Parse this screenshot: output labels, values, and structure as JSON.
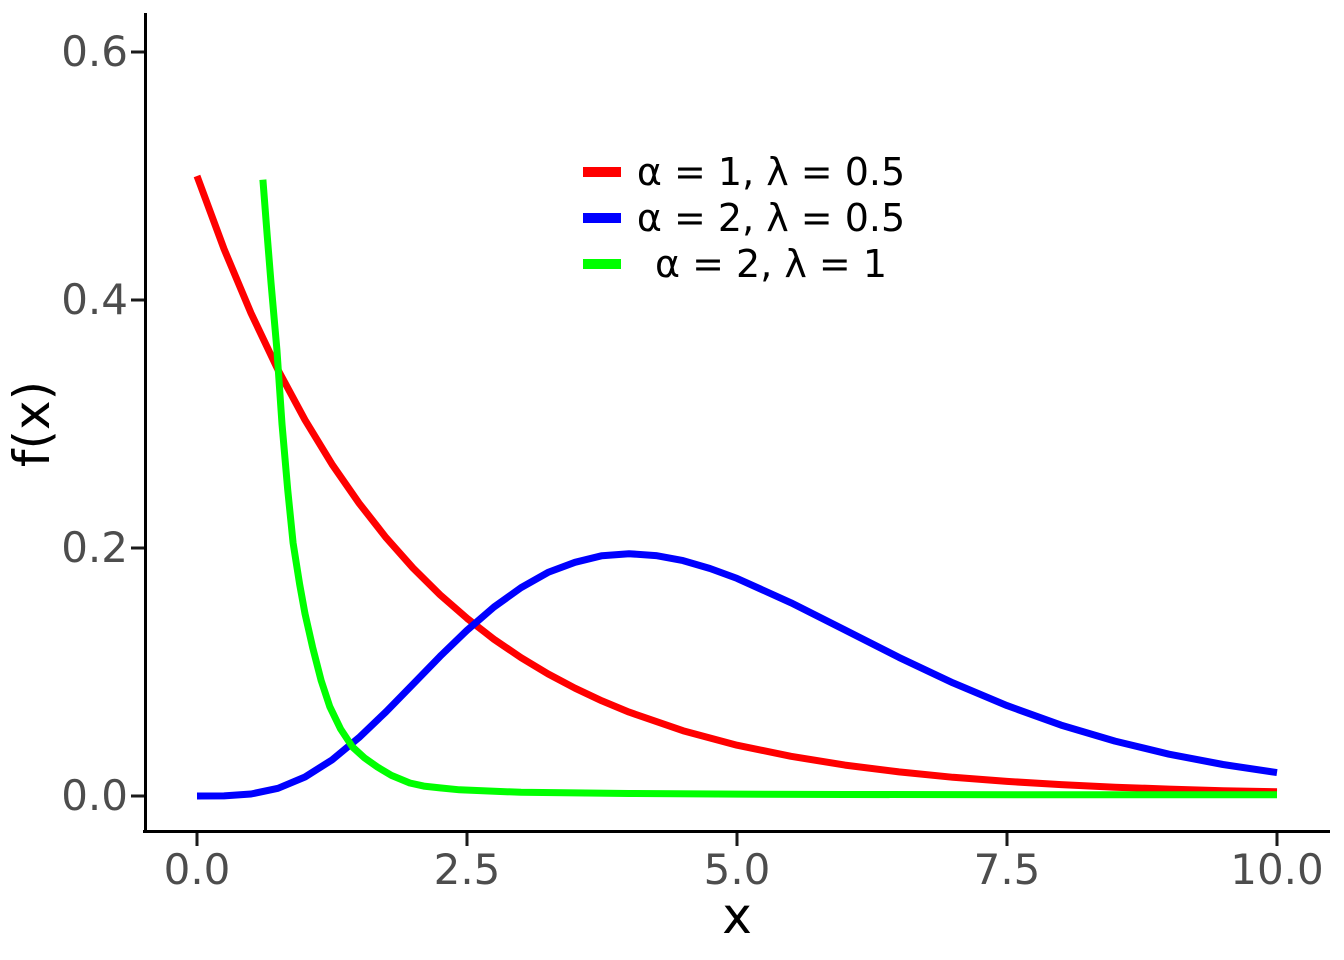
{
  "chart_data": {
    "type": "line",
    "title": "",
    "xlabel": "x",
    "ylabel": "f(x)",
    "xlim": [
      0,
      10
    ],
    "ylim": [
      0,
      0.6
    ],
    "grid": false,
    "background": "#ffffff",
    "axis_line_color": "#000000",
    "tick_color": "#1a1a1a",
    "tick_label_color": "#4d4d4d",
    "legend_position": "inside top-center",
    "x_ticks": [
      {
        "value": 0.0,
        "label": "0.0"
      },
      {
        "value": 2.5,
        "label": "2.5"
      },
      {
        "value": 5.0,
        "label": "5.0"
      },
      {
        "value": 7.5,
        "label": "7.5"
      },
      {
        "value": 10.0,
        "label": "10.0"
      }
    ],
    "y_ticks": [
      {
        "value": 0.0,
        "label": "0.0"
      },
      {
        "value": 0.2,
        "label": "0.2"
      },
      {
        "value": 0.4,
        "label": "0.4"
      },
      {
        "value": 0.6,
        "label": "0.6"
      }
    ],
    "series": [
      {
        "label": "α = 1, λ = 0.5",
        "alpha": 1,
        "lambda": 0.5,
        "color": "#ff0000",
        "points": [
          [
            0,
            0.5
          ],
          [
            0.25,
            0.4412
          ],
          [
            0.5,
            0.3894
          ],
          [
            0.75,
            0.3436
          ],
          [
            1,
            0.3033
          ],
          [
            1.25,
            0.2676
          ],
          [
            1.5,
            0.2362
          ],
          [
            1.75,
            0.2084
          ],
          [
            2,
            0.1839
          ],
          [
            2.25,
            0.1623
          ],
          [
            2.5,
            0.1433
          ],
          [
            2.75,
            0.1264
          ],
          [
            3,
            0.1116
          ],
          [
            3.25,
            0.0985
          ],
          [
            3.5,
            0.0869
          ],
          [
            3.75,
            0.0767
          ],
          [
            4,
            0.0677
          ],
          [
            4.5,
            0.0527
          ],
          [
            5,
            0.041
          ],
          [
            5.5,
            0.032
          ],
          [
            6,
            0.0249
          ],
          [
            6.5,
            0.0194
          ],
          [
            7,
            0.0151
          ],
          [
            7.5,
            0.0118
          ],
          [
            8,
            0.0092
          ],
          [
            8.5,
            0.0071
          ],
          [
            9,
            0.0056
          ],
          [
            9.5,
            0.0043
          ],
          [
            10,
            0.0034
          ]
        ]
      },
      {
        "label": "α = 2, λ = 0.5",
        "alpha": 2,
        "lambda": 0.5,
        "color": "#0000ff",
        "points": [
          [
            0,
            0.0
          ],
          [
            0.25,
            0.0001
          ],
          [
            0.5,
            0.0016
          ],
          [
            0.75,
            0.0062
          ],
          [
            1,
            0.0153
          ],
          [
            1.25,
            0.0291
          ],
          [
            1.5,
            0.0471
          ],
          [
            1.75,
            0.0679
          ],
          [
            2,
            0.0902
          ],
          [
            2.25,
            0.1126
          ],
          [
            2.5,
            0.1336
          ],
          [
            2.75,
            0.1524
          ],
          [
            3,
            0.168
          ],
          [
            3.25,
            0.1803
          ],
          [
            3.5,
            0.1885
          ],
          [
            3.75,
            0.1938
          ],
          [
            4,
            0.1954
          ],
          [
            4.25,
            0.1939
          ],
          [
            4.5,
            0.1898
          ],
          [
            4.75,
            0.1835
          ],
          [
            5,
            0.1755
          ],
          [
            5.5,
            0.1558
          ],
          [
            6,
            0.1339
          ],
          [
            6.5,
            0.1118
          ],
          [
            7,
            0.0912
          ],
          [
            7.5,
            0.0729
          ],
          [
            8,
            0.0572
          ],
          [
            8.5,
            0.0443
          ],
          [
            9,
            0.0337
          ],
          [
            9.5,
            0.0254
          ],
          [
            10,
            0.0189
          ]
        ]
      },
      {
        "label": "α = 2, λ = 1",
        "alpha": 2,
        "lambda": 1,
        "color": "#00ff00",
        "points": [
          [
            0.61,
            0.497
          ],
          [
            0.65,
            0.452
          ],
          [
            0.685,
            0.414
          ],
          [
            0.74,
            0.36
          ],
          [
            0.787,
            0.3
          ],
          [
            0.84,
            0.247
          ],
          [
            0.89,
            0.204
          ],
          [
            0.95,
            0.171
          ],
          [
            1.0,
            0.147
          ],
          [
            1.07,
            0.12
          ],
          [
            1.15,
            0.093
          ],
          [
            1.23,
            0.072
          ],
          [
            1.33,
            0.054
          ],
          [
            1.44,
            0.0395
          ],
          [
            1.55,
            0.0308
          ],
          [
            1.67,
            0.0234
          ],
          [
            1.8,
            0.0166
          ],
          [
            1.97,
            0.0105
          ],
          [
            2.1,
            0.008
          ],
          [
            2.25,
            0.0065
          ],
          [
            2.43,
            0.005
          ],
          [
            2.7,
            0.004
          ],
          [
            3.0,
            0.003
          ],
          [
            3.5,
            0.0025
          ],
          [
            4,
            0.002
          ],
          [
            5,
            0.0015
          ],
          [
            6,
            0.0012
          ],
          [
            8,
            0.001
          ],
          [
            10,
            0.001
          ]
        ]
      }
    ]
  }
}
